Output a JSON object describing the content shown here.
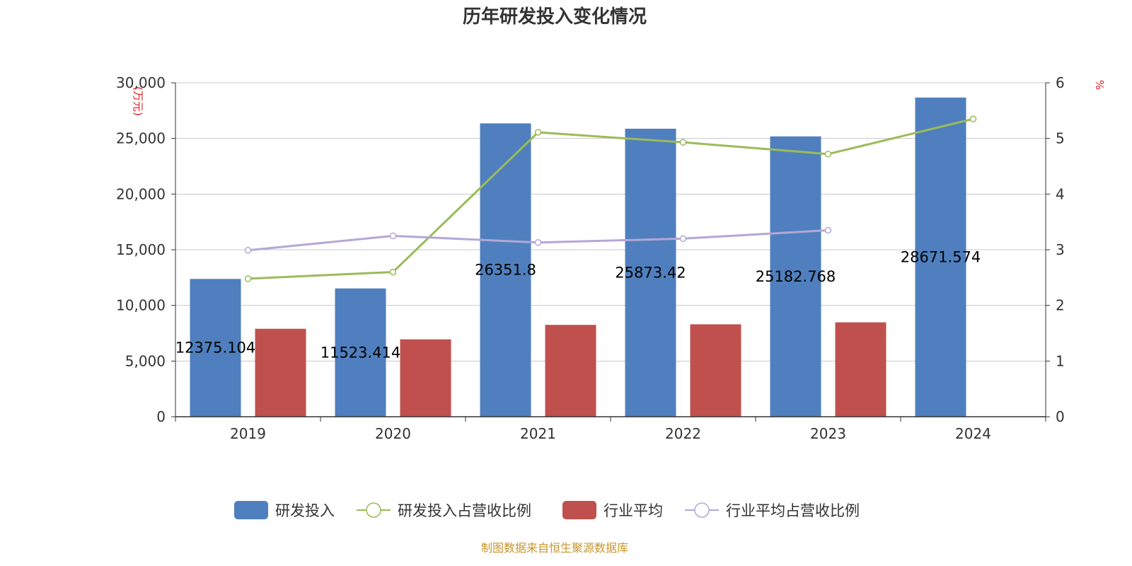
{
  "chart_data": {
    "type": "bar",
    "title": "历年研发投入变化情况",
    "categories": [
      "2019",
      "2020",
      "2021",
      "2022",
      "2023",
      "2024"
    ],
    "y_left": {
      "unit_label": "(万元)",
      "range": [
        0,
        30000
      ],
      "ticks": [
        "0",
        "5,000",
        "10,000",
        "15,000",
        "20,000",
        "25,000",
        "30,000"
      ]
    },
    "y_right": {
      "unit_label": "%",
      "range": [
        0,
        6
      ],
      "ticks": [
        "0",
        "1",
        "2",
        "3",
        "4",
        "5",
        "6"
      ]
    },
    "grid": true,
    "legend_position": "bottom",
    "series": [
      {
        "name": "研发投入",
        "type": "bar",
        "axis": "left",
        "color": "#4f7fbe",
        "values": [
          12375.104,
          11523.414,
          26351.8,
          25873.42,
          25182.768,
          28671.574
        ],
        "labels": [
          "12375.104",
          "11523.414",
          "26351.8",
          "25873.42",
          "25182.768",
          "28671.574"
        ]
      },
      {
        "name": "研发投入占营收比例",
        "type": "line",
        "axis": "right",
        "color": "#9bbb59",
        "values": [
          2.48,
          2.6,
          5.11,
          4.93,
          4.72,
          5.35
        ]
      },
      {
        "name": "行业平均",
        "type": "bar",
        "axis": "left",
        "color": "#c0504d",
        "values": [
          7900,
          6950,
          8250,
          8300,
          8480,
          null
        ]
      },
      {
        "name": "行业平均占营收比例",
        "type": "line",
        "axis": "right",
        "color": "#b4a7d6",
        "values": [
          2.99,
          3.25,
          3.13,
          3.2,
          3.35,
          null
        ]
      }
    ],
    "source_note": "制图数据来自恒生聚源数据库"
  }
}
